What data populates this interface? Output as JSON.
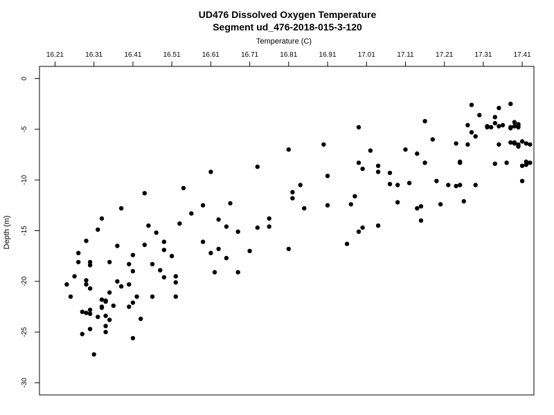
{
  "chart_data": {
    "type": "scatter",
    "title": "UD476 Dissolved Oxygen Temperature",
    "subtitle": "Segment ud_476-2018-015-3-120",
    "xlabel": "Temperature (C)",
    "ylabel": "Depth (m)",
    "x_axis_position": "top",
    "xlim": [
      16.17,
      17.44
    ],
    "ylim": [
      1.2,
      -31.2
    ],
    "x_ticks": [
      16.21,
      16.31,
      16.41,
      16.51,
      16.61,
      16.71,
      16.81,
      16.91,
      17.01,
      17.11,
      17.21,
      17.31,
      17.41
    ],
    "x_tick_labels": [
      "16.21",
      "16.31",
      "16.41",
      "16.51",
      "16.61",
      "16.71",
      "16.81",
      "16.91",
      "17.01",
      "17.11",
      "17.21",
      "17.31",
      "17.41"
    ],
    "y_ticks": [
      0,
      -5,
      -10,
      -15,
      -20,
      -25,
      -30
    ],
    "y_tick_labels": [
      "0",
      "-5",
      "-10",
      "-15",
      "-20",
      "-25",
      "-30"
    ],
    "grid": false,
    "legend": "none",
    "point_color": "#000000",
    "points": [
      [
        16.24,
        -20.3
      ],
      [
        16.25,
        -21.5
      ],
      [
        16.26,
        -19.5
      ],
      [
        16.27,
        -17.2
      ],
      [
        16.27,
        -18.1
      ],
      [
        16.28,
        -25.2
      ],
      [
        16.28,
        -23.0
      ],
      [
        16.29,
        -16.0
      ],
      [
        16.29,
        -19.9
      ],
      [
        16.29,
        -20.3
      ],
      [
        16.3,
        -18.4
      ],
      [
        16.3,
        -18.1
      ],
      [
        16.3,
        -20.7
      ],
      [
        16.3,
        -22.8
      ],
      [
        16.29,
        -23.1
      ],
      [
        16.3,
        -23.2
      ],
      [
        16.3,
        -24.7
      ],
      [
        16.31,
        -27.2
      ],
      [
        16.32,
        -23.5
      ],
      [
        16.32,
        -14.9
      ],
      [
        16.33,
        -13.8
      ],
      [
        16.33,
        -21.8
      ],
      [
        16.33,
        -22.5
      ],
      [
        16.33,
        -22.6
      ],
      [
        16.34,
        -22.0
      ],
      [
        16.34,
        -23.4
      ],
      [
        16.34,
        -25.0
      ],
      [
        16.34,
        -24.4
      ],
      [
        16.34,
        -21.9
      ],
      [
        16.35,
        -18.1
      ],
      [
        16.35,
        -21.1
      ],
      [
        16.35,
        -23.8
      ],
      [
        16.36,
        -22.4
      ],
      [
        16.37,
        -20.0
      ],
      [
        16.37,
        -16.5
      ],
      [
        16.38,
        -12.8
      ],
      [
        16.38,
        -20.5
      ],
      [
        16.4,
        -18.3
      ],
      [
        16.4,
        -20.3
      ],
      [
        16.4,
        -22.5
      ],
      [
        16.41,
        -17.4
      ],
      [
        16.41,
        -22.1
      ],
      [
        16.41,
        -25.6
      ],
      [
        16.41,
        -19.0
      ],
      [
        16.42,
        -21.5
      ],
      [
        16.43,
        -23.7
      ],
      [
        16.44,
        -16.4
      ],
      [
        16.44,
        -11.3
      ],
      [
        16.45,
        -14.5
      ],
      [
        16.46,
        -21.5
      ],
      [
        16.46,
        -18.3
      ],
      [
        16.47,
        -15.2
      ],
      [
        16.48,
        -18.9
      ],
      [
        16.49,
        -19.6
      ],
      [
        16.49,
        -16.1
      ],
      [
        16.49,
        -16.9
      ],
      [
        16.51,
        -17.5
      ],
      [
        16.52,
        -19.5
      ],
      [
        16.52,
        -20.1
      ],
      [
        16.52,
        -21.5
      ],
      [
        16.53,
        -14.3
      ],
      [
        16.54,
        -10.8
      ],
      [
        16.56,
        -13.3
      ],
      [
        16.59,
        -16.1
      ],
      [
        16.59,
        -12.5
      ],
      [
        16.61,
        -9.2
      ],
      [
        16.61,
        -17.2
      ],
      [
        16.62,
        -19.1
      ],
      [
        16.63,
        -13.9
      ],
      [
        16.63,
        -16.8
      ],
      [
        16.65,
        -14.6
      ],
      [
        16.65,
        -17.7
      ],
      [
        16.66,
        -12.3
      ],
      [
        16.68,
        -15.1
      ],
      [
        16.68,
        -19.1
      ],
      [
        16.71,
        -17.0
      ],
      [
        16.73,
        -8.7
      ],
      [
        16.73,
        -14.7
      ],
      [
        16.76,
        -13.8
      ],
      [
        16.76,
        -14.6
      ],
      [
        16.81,
        -16.8
      ],
      [
        16.81,
        -7.0
      ],
      [
        16.82,
        -11.8
      ],
      [
        16.82,
        -11.2
      ],
      [
        16.84,
        -10.5
      ],
      [
        16.85,
        -12.8
      ],
      [
        16.9,
        -6.5
      ],
      [
        16.91,
        -9.6
      ],
      [
        16.91,
        -12.5
      ],
      [
        16.96,
        -16.3
      ],
      [
        16.97,
        -12.4
      ],
      [
        16.98,
        -11.6
      ],
      [
        16.99,
        -8.3
      ],
      [
        16.99,
        -4.8
      ],
      [
        16.99,
        -15.1
      ],
      [
        17.0,
        -14.7
      ],
      [
        17.0,
        -8.9
      ],
      [
        17.02,
        -7.1
      ],
      [
        17.04,
        -9.2
      ],
      [
        17.04,
        -8.6
      ],
      [
        17.04,
        -14.5
      ],
      [
        17.07,
        -10.4
      ],
      [
        17.07,
        -9.3
      ],
      [
        17.09,
        -12.2
      ],
      [
        17.09,
        -10.5
      ],
      [
        17.11,
        -7.0
      ],
      [
        17.12,
        -10.3
      ],
      [
        17.14,
        -12.8
      ],
      [
        17.15,
        -12.6
      ],
      [
        17.14,
        -7.4
      ],
      [
        17.15,
        -14.0
      ],
      [
        17.16,
        -4.2
      ],
      [
        17.16,
        -8.3
      ],
      [
        17.18,
        -6.0
      ],
      [
        17.19,
        -10.1
      ],
      [
        17.2,
        -12.4
      ],
      [
        17.22,
        -10.5
      ],
      [
        17.24,
        -10.6
      ],
      [
        17.24,
        -6.4
      ],
      [
        17.25,
        -8.2
      ],
      [
        17.25,
        -10.5
      ],
      [
        17.25,
        -8.3
      ],
      [
        17.26,
        -12.1
      ],
      [
        17.27,
        -4.6
      ],
      [
        17.27,
        -6.5
      ],
      [
        17.28,
        -2.6
      ],
      [
        17.28,
        -5.3
      ],
      [
        17.29,
        -5.7
      ],
      [
        17.29,
        -10.5
      ],
      [
        17.3,
        -3.6
      ],
      [
        17.32,
        -4.8
      ],
      [
        17.32,
        -4.7
      ],
      [
        17.33,
        -4.8
      ],
      [
        17.34,
        -4.4
      ],
      [
        17.34,
        -3.8
      ],
      [
        17.34,
        -8.4
      ],
      [
        17.35,
        -6.5
      ],
      [
        17.35,
        -2.9
      ],
      [
        17.35,
        -4.7
      ],
      [
        17.36,
        -4.6
      ],
      [
        17.37,
        -8.3
      ],
      [
        17.38,
        -2.5
      ],
      [
        17.38,
        -4.8
      ],
      [
        17.38,
        -6.3
      ],
      [
        17.38,
        -4.9
      ],
      [
        17.39,
        -4.7
      ],
      [
        17.39,
        -6.4
      ],
      [
        17.39,
        -4.3
      ],
      [
        17.39,
        -6.3
      ],
      [
        17.4,
        -4.6
      ],
      [
        17.4,
        -6.5
      ],
      [
        17.4,
        -4.8
      ],
      [
        17.4,
        -6.6
      ],
      [
        17.4,
        -4.5
      ],
      [
        17.4,
        -6.7
      ],
      [
        17.41,
        -8.6
      ],
      [
        17.41,
        -10.1
      ],
      [
        17.41,
        -6.2
      ],
      [
        17.42,
        -8.2
      ],
      [
        17.42,
        -8.5
      ],
      [
        17.42,
        -6.4
      ],
      [
        17.43,
        -6.5
      ],
      [
        17.43,
        -8.3
      ]
    ]
  }
}
